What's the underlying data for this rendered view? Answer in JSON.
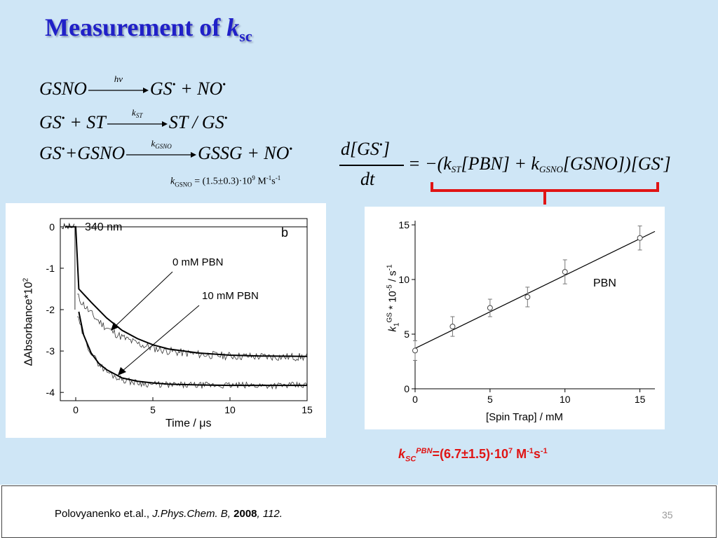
{
  "title": {
    "main": "Measurement of ",
    "k": "k",
    "sub": "sc"
  },
  "reactions": {
    "r1": {
      "lhs": "GSNO",
      "arrow": "hv",
      "rhs_a": "GS",
      "rhs_b": "+ NO"
    },
    "r2": {
      "lhs_a": "GS",
      "lhs_b": "+ ST",
      "arrow_k": "k",
      "arrow_sub": "ST",
      "rhs_a": "ST / GS"
    },
    "r3": {
      "lhs_a": "GS",
      "lhs_b": "+GSNO",
      "arrow_k": "k",
      "arrow_sub": "GSNO",
      "rhs_a": "GSSG + NO"
    }
  },
  "kgsno": {
    "k": "k",
    "sub": "GSNO",
    "value": " = (1.5±0.3)·10",
    "exp": "9",
    "unit1": " M",
    "unit1_exp": "-1",
    "unit2": "s",
    "unit2_exp": "-1"
  },
  "rate_equation": {
    "numerator": "d[GS",
    "numerator_end": "]",
    "denominator": "dt",
    "rhs_start": "= −(",
    "k_st": "k",
    "k_st_sub": "ST",
    "pbn": "[PBN] + ",
    "k_gsno": "k",
    "k_gsno_sub": "GSNO",
    "gsno": "[GSNO])",
    "gs": "[GS",
    "gs_end": "]"
  },
  "bullet": "•",
  "left_plot": {
    "label_wavelength": "340 nm",
    "label_panel": "b",
    "label_0mm": "0 mM PBN",
    "label_10mm": "10 mM PBN",
    "xlabel": "Time / μs",
    "ylabel": "ΔAbsorbance*10",
    "ylabel_exp": "2",
    "xticks": [
      "0",
      "5",
      "10",
      "15"
    ],
    "yticks": [
      "0",
      "-1",
      "-2",
      "-3",
      "-4"
    ]
  },
  "chart_data": [
    {
      "type": "line",
      "title": "340 nm",
      "xlabel": "Time / μs",
      "ylabel": "ΔAbsorbance*10^2",
      "xlim": [
        -1,
        15
      ],
      "ylim": [
        -4.2,
        0.2
      ],
      "series": [
        {
          "name": "0 mM PBN",
          "x": [
            -0.7,
            -0.2,
            0,
            0.2,
            1,
            2,
            3,
            4,
            5,
            6,
            8,
            10,
            12,
            15
          ],
          "y": [
            0,
            0,
            0,
            -1.5,
            -1.82,
            -2.2,
            -2.5,
            -2.7,
            -2.85,
            -2.95,
            -3.05,
            -3.1,
            -3.12,
            -3.13
          ]
        },
        {
          "name": "10 mM PBN",
          "x": [
            0.2,
            0.5,
            1,
            1.5,
            2,
            3,
            4,
            5,
            6,
            8,
            10,
            12,
            15
          ],
          "y": [
            -2.05,
            -2.6,
            -3.05,
            -3.3,
            -3.45,
            -3.65,
            -3.73,
            -3.77,
            -3.8,
            -3.82,
            -3.83,
            -3.83,
            -3.83
          ]
        }
      ]
    },
    {
      "type": "scatter",
      "title": "PBN",
      "xlabel": "[Spin Trap] / mM",
      "ylabel": "k1^GS * 10^-5 / s^-1",
      "xlim": [
        0,
        16
      ],
      "ylim": [
        0,
        15
      ],
      "series": [
        {
          "name": "PBN",
          "x": [
            0,
            2.5,
            5,
            7.5,
            10,
            15
          ],
          "y": [
            3.5,
            5.7,
            7.4,
            8.4,
            10.7,
            13.8
          ],
          "err": [
            0.9,
            0.9,
            0.8,
            0.9,
            1.1,
            1.1
          ]
        }
      ],
      "fit": {
        "x": [
          0,
          16
        ],
        "y": [
          3.7,
          14.4
        ]
      }
    }
  ],
  "right_plot": {
    "label_series": "PBN",
    "xlabel": "[Spin Trap] / mM",
    "ylabel_k": "k",
    "ylabel_gs": "GS",
    "ylabel_1": "1",
    "ylabel_rest": " * 10",
    "ylabel_exp": "-5",
    "ylabel_unit": " / s",
    "ylabel_unit_exp": "-1",
    "xticks": [
      "0",
      "5",
      "10",
      "15"
    ],
    "yticks": [
      "0",
      "5",
      "10",
      "15"
    ]
  },
  "ksc": {
    "k": "k",
    "sub": "SC",
    "sup": "PBN",
    "value": "=(6.7±1.5)·10",
    "exp": "7",
    "unit1": " M",
    "unit1_exp": "-1",
    "unit2": "s",
    "unit2_exp": "-1"
  },
  "footer": {
    "authors": "Polovyanenko et.al., ",
    "journal": "J.Phys.Chem. B,",
    "year": " 2008",
    "pages": ", 112.",
    "page_number": "35"
  },
  "colors": {
    "title": "#2020c8",
    "slide_bg": "#cfe6f6",
    "accent_red": "#e01414"
  }
}
